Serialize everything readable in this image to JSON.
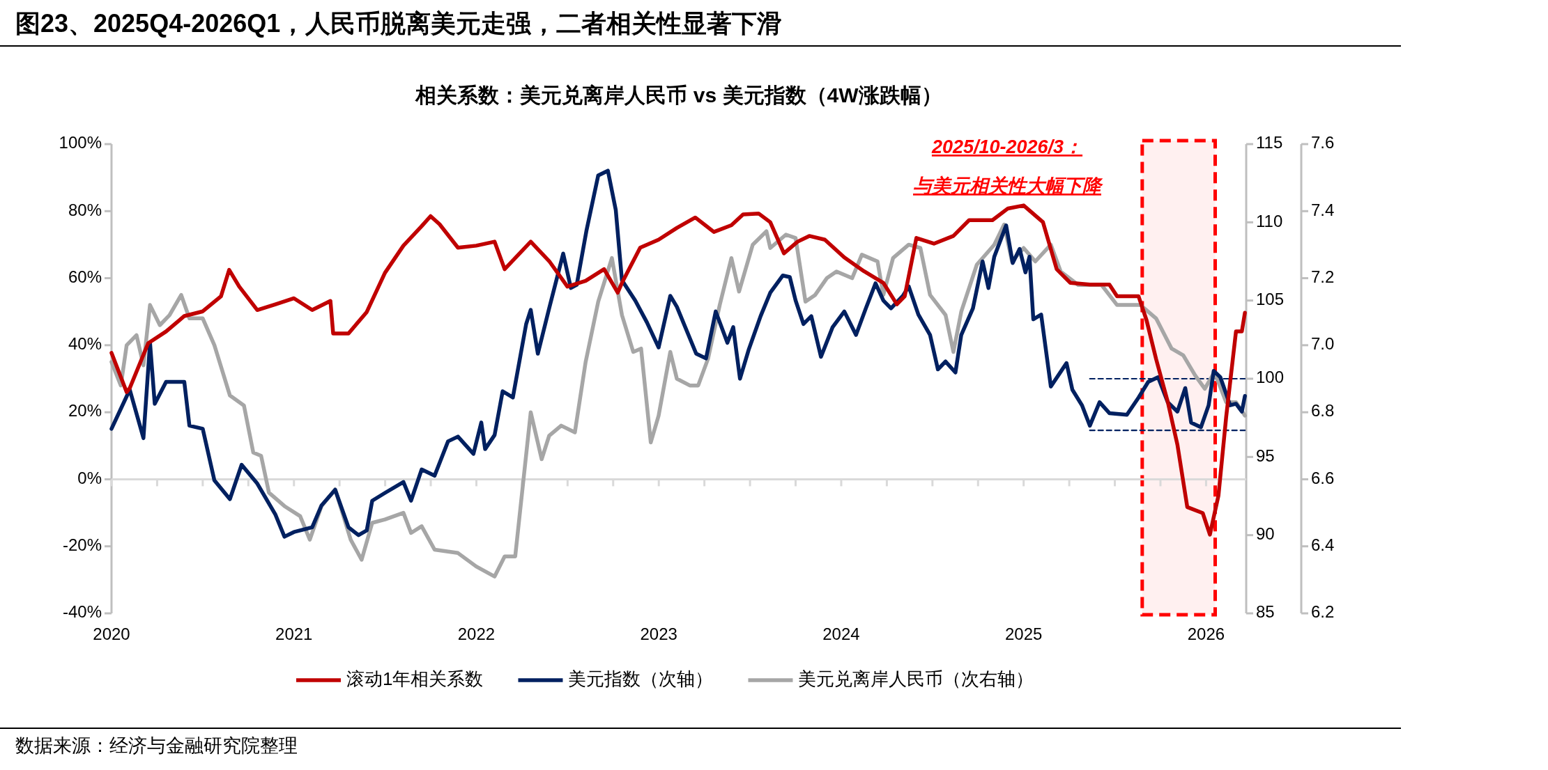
{
  "chart_data": {
    "type": "line",
    "title": "图23、2025Q4-2026Q1，人民币脱离美元走强，二者相关性显著下滑",
    "subtitle": "相关系数：美元兑离岸人民币 vs 美元指数（4W涨跌幅）",
    "xlim": [
      2020,
      2026.22
    ],
    "xticks": [
      2020,
      {
        "value": 2020.25,
        "label": null
      },
      {
        "value": 2020.5,
        "label": null
      },
      {
        "value": 2020.75,
        "label": null
      },
      2021,
      {
        "value": 2021.25,
        "label": null
      },
      {
        "value": 2021.5,
        "label": null
      },
      {
        "value": 2021.75,
        "label": null
      },
      2022,
      {
        "value": 2022.25,
        "label": null
      },
      {
        "value": 2022.5,
        "label": null
      },
      {
        "value": 2022.75,
        "label": null
      },
      2023,
      {
        "value": 2023.25,
        "label": null
      },
      {
        "value": 2023.5,
        "label": null
      },
      {
        "value": 2023.75,
        "label": null
      },
      2024,
      {
        "value": 2024.25,
        "label": null
      },
      {
        "value": 2024.5,
        "label": null
      },
      {
        "value": 2024.75,
        "label": null
      },
      2025,
      {
        "value": 2025.25,
        "label": null
      },
      {
        "value": 2025.5,
        "label": null
      },
      {
        "value": 2025.75,
        "label": null
      },
      2026
    ],
    "ylim": [
      -40,
      100
    ],
    "yticks": [
      {
        "value": -40,
        "label": "-40%"
      },
      {
        "value": -20,
        "label": "-20%"
      },
      {
        "value": 0,
        "label": "0%"
      },
      {
        "value": 20,
        "label": "20%"
      },
      {
        "value": 40,
        "label": "40%"
      },
      {
        "value": 60,
        "label": "60%"
      },
      {
        "value": 80,
        "label": "80%"
      },
      {
        "value": 100,
        "label": "100%"
      }
    ],
    "y2lim": [
      85,
      115
    ],
    "y2ticks": [
      85,
      90,
      95,
      100,
      105,
      110,
      115
    ],
    "y3lim": [
      6.2,
      7.6
    ],
    "y3ticks": [
      6.2,
      6.4,
      6.6,
      6.8,
      {
        "value": 7.0,
        "label": "7.0"
      },
      7.2,
      7.4,
      7.6
    ],
    "legend": "bottom",
    "bands": [
      {
        "axis": "x",
        "from": 2025.65,
        "to": 2026.05,
        "color": "#ff0000"
      }
    ],
    "annotations": [
      "2025/10-2026/3：",
      "与美元相关性大幅下降",
      "数据来源：经济与金融研究院整理"
    ],
    "series": [
      {
        "name": "滚动1年相关系数",
        "type": "line",
        "color": "#c00000",
        "axis": "y",
        "x": [
          2020.0,
          2020.083,
          2020.1,
          2020.201,
          2020.299,
          2020.399,
          2020.5,
          2020.6,
          2020.645,
          2020.7,
          2020.799,
          2020.899,
          2021.0,
          2021.1,
          2021.2,
          2021.215,
          2021.299,
          2021.399,
          2021.499,
          2021.6,
          2021.7,
          2021.749,
          2021.798,
          2021.899,
          2021.999,
          2022.1,
          2022.155,
          2022.298,
          2022.399,
          2022.499,
          2022.599,
          2022.7,
          2022.775,
          2022.798,
          2022.898,
          2022.999,
          2023.099,
          2023.2,
          2023.302,
          2023.398,
          2023.462,
          2023.547,
          2023.611,
          2023.686,
          2023.761,
          2023.825,
          2023.91,
          2024.017,
          2024.124,
          2024.231,
          2024.305,
          2024.348,
          2024.412,
          2024.508,
          2024.615,
          2024.701,
          2024.829,
          2024.914,
          2025.0,
          2025.106,
          2025.181,
          2025.256,
          2025.363,
          2025.47,
          2025.512,
          2025.63,
          2025.673,
          2025.726,
          2025.79,
          2025.843,
          2025.897,
          2025.982,
          2026.021,
          2026.068,
          2026.11,
          2026.164,
          2026.196,
          2026.213
        ],
        "values": [
          37.7,
          26.0,
          27.2,
          40.6,
          44.1,
          48.7,
          50.1,
          54.6,
          62.5,
          57.5,
          50.5,
          52.2,
          54.0,
          50.5,
          53.2,
          43.5,
          43.5,
          49.9,
          61.6,
          69.7,
          75.5,
          78.5,
          76.1,
          69.1,
          69.7,
          70.9,
          62.7,
          70.9,
          65.1,
          57.5,
          59.2,
          62.7,
          55.7,
          58.6,
          69.1,
          71.5,
          75.0,
          78.1,
          73.8,
          75.8,
          79.0,
          79.3,
          76.7,
          67.4,
          70.9,
          72.6,
          71.5,
          66.2,
          62.1,
          58.6,
          52.2,
          54.6,
          72.0,
          70.3,
          72.6,
          77.3,
          77.3,
          80.8,
          81.7,
          76.7,
          62.7,
          58.6,
          58.1,
          58.1,
          54.6,
          54.6,
          47.6,
          35.9,
          23.1,
          10.3,
          -8.3,
          -10.1,
          -16.5,
          -4.8,
          18.5,
          44.1,
          44.1,
          49.7
        ]
      },
      {
        "name": "美元指数（次轴）",
        "type": "line",
        "color": "#002060",
        "axis": "y2",
        "x": [
          2020.0,
          2020.1,
          2020.175,
          2020.211,
          2020.237,
          2020.299,
          2020.399,
          2020.427,
          2020.5,
          2020.564,
          2020.649,
          2020.713,
          2020.799,
          2020.899,
          2020.948,
          2021.0,
          2021.1,
          2021.151,
          2021.226,
          2021.299,
          2021.354,
          2021.399,
          2021.429,
          2021.499,
          2021.6,
          2021.642,
          2021.7,
          2021.771,
          2021.845,
          2021.899,
          2021.984,
          2022.027,
          2022.048,
          2022.1,
          2022.144,
          2022.2,
          2022.273,
          2022.298,
          2022.337,
          2022.399,
          2022.476,
          2022.518,
          2022.55,
          2022.604,
          2022.668,
          2022.721,
          2022.764,
          2022.798,
          2022.871,
          2022.935,
          2022.999,
          2023.063,
          2023.099,
          2023.205,
          2023.259,
          2023.312,
          2023.376,
          2023.408,
          2023.445,
          2023.494,
          2023.558,
          2023.611,
          2023.68,
          2023.718,
          2023.75,
          2023.793,
          2023.836,
          2023.889,
          2023.953,
          2024.017,
          2024.081,
          2024.135,
          2024.188,
          2024.231,
          2024.273,
          2024.338,
          2024.37,
          2024.423,
          2024.487,
          2024.53,
          2024.572,
          2024.626,
          2024.658,
          2024.722,
          2024.775,
          2024.807,
          2024.839,
          2024.904,
          2024.94,
          2024.978,
          2025.01,
          2025.032,
          2025.053,
          2025.096,
          2025.149,
          2025.235,
          2025.267,
          2025.32,
          2025.363,
          2025.416,
          2025.47,
          2025.566,
          2025.63,
          2025.683,
          2025.737,
          2025.79,
          2025.843,
          2025.886,
          2025.918,
          2025.972,
          2026.014,
          2026.042,
          2026.078,
          2026.132,
          2026.164,
          2026.196,
          2026.213
        ],
        "values": [
          96.8,
          99.3,
          96.2,
          102.3,
          98.4,
          99.8,
          99.8,
          97.0,
          96.8,
          93.5,
          92.3,
          94.5,
          93.3,
          91.3,
          89.9,
          90.2,
          90.5,
          91.9,
          92.9,
          90.5,
          90.0,
          90.3,
          92.2,
          92.7,
          93.4,
          92.2,
          94.2,
          93.8,
          96.0,
          96.3,
          95.2,
          97.2,
          95.5,
          96.4,
          99.2,
          98.8,
          103.5,
          104.4,
          101.6,
          104.5,
          108.0,
          105.8,
          106.0,
          109.5,
          113.0,
          113.3,
          110.8,
          106.3,
          105.0,
          103.6,
          102.0,
          105.3,
          104.6,
          101.6,
          101.3,
          104.3,
          102.3,
          103.3,
          100.0,
          101.9,
          104.0,
          105.5,
          106.6,
          106.5,
          105.0,
          103.5,
          104.0,
          101.4,
          103.3,
          104.3,
          102.8,
          104.5,
          106.1,
          105.0,
          104.5,
          105.3,
          105.9,
          104.1,
          102.8,
          100.6,
          101.1,
          100.4,
          102.8,
          104.5,
          107.5,
          105.8,
          107.8,
          109.8,
          107.4,
          108.3,
          106.8,
          107.8,
          103.8,
          104.1,
          99.5,
          101.0,
          99.3,
          98.3,
          97.0,
          98.5,
          97.8,
          97.7,
          98.8,
          99.8,
          100.1,
          98.5,
          97.9,
          99.4,
          97.2,
          96.9,
          98.3,
          100.5,
          100.1,
          98.3,
          98.4,
          97.9,
          98.9
        ]
      },
      {
        "name": "美元兑离岸人民币（次右轴）",
        "type": "line",
        "color": "#a6a6a6",
        "axis": "y3",
        "x": [
          2020.0,
          2020.051,
          2020.083,
          2020.137,
          2020.175,
          2020.211,
          2020.265,
          2020.318,
          2020.382,
          2020.427,
          2020.5,
          2020.564,
          2020.649,
          2020.726,
          2020.777,
          2020.82,
          2020.863,
          2020.948,
          2021.034,
          2021.087,
          2021.151,
          2021.226,
          2021.311,
          2021.371,
          2021.429,
          2021.499,
          2021.6,
          2021.642,
          2021.7,
          2021.771,
          2021.899,
          2021.999,
          2022.1,
          2022.155,
          2022.213,
          2022.298,
          2022.358,
          2022.399,
          2022.465,
          2022.54,
          2022.599,
          2022.668,
          2022.743,
          2022.798,
          2022.86,
          2022.903,
          2022.956,
          2022.999,
          2023.063,
          2023.099,
          2023.17,
          2023.216,
          2023.27,
          2023.334,
          2023.398,
          2023.44,
          2023.515,
          2023.59,
          2023.611,
          2023.697,
          2023.75,
          2023.804,
          2023.857,
          2023.921,
          2023.974,
          2024.06,
          2024.113,
          2024.199,
          2024.231,
          2024.284,
          2024.37,
          2024.434,
          2024.487,
          2024.572,
          2024.615,
          2024.658,
          2024.743,
          2024.839,
          2024.893,
          2024.936,
          2025.0,
          2025.064,
          2025.149,
          2025.203,
          2025.299,
          2025.427,
          2025.512,
          2025.64,
          2025.726,
          2025.811,
          2025.875,
          2025.94,
          2025.993,
          2026.046,
          2026.11,
          2026.164,
          2026.213
        ],
        "values": [
          6.95,
          6.88,
          7.0,
          7.03,
          6.94,
          7.12,
          7.06,
          7.09,
          7.15,
          7.08,
          7.08,
          7.0,
          6.85,
          6.82,
          6.68,
          6.67,
          6.56,
          6.52,
          6.49,
          6.42,
          6.52,
          6.57,
          6.42,
          6.36,
          6.47,
          6.48,
          6.5,
          6.44,
          6.46,
          6.39,
          6.38,
          6.34,
          6.31,
          6.37,
          6.37,
          6.8,
          6.66,
          6.73,
          6.76,
          6.74,
          6.95,
          7.13,
          7.26,
          7.09,
          6.98,
          6.99,
          6.71,
          6.79,
          6.98,
          6.9,
          6.88,
          6.88,
          6.96,
          7.12,
          7.26,
          7.16,
          7.3,
          7.34,
          7.29,
          7.33,
          7.32,
          7.13,
          7.15,
          7.2,
          7.22,
          7.2,
          7.27,
          7.25,
          7.15,
          7.26,
          7.3,
          7.29,
          7.15,
          7.09,
          6.98,
          7.1,
          7.24,
          7.3,
          7.36,
          7.25,
          7.29,
          7.25,
          7.3,
          7.22,
          7.18,
          7.18,
          7.12,
          7.12,
          7.08,
          6.99,
          6.97,
          6.91,
          6.87,
          6.92,
          6.83,
          6.83,
          6.79
        ]
      },
      {
        "type": "line",
        "color": "#002060",
        "axis": "y2",
        "line_style": "dashed",
        "x": [
          2025.363,
          2026.213
        ],
        "values": [
          100,
          100
        ]
      },
      {
        "type": "line",
        "color": "#002060",
        "axis": "y2",
        "line_style": "dashed",
        "x": [
          2025.363,
          2026.213
        ],
        "values": [
          96.7,
          96.7
        ]
      }
    ]
  }
}
